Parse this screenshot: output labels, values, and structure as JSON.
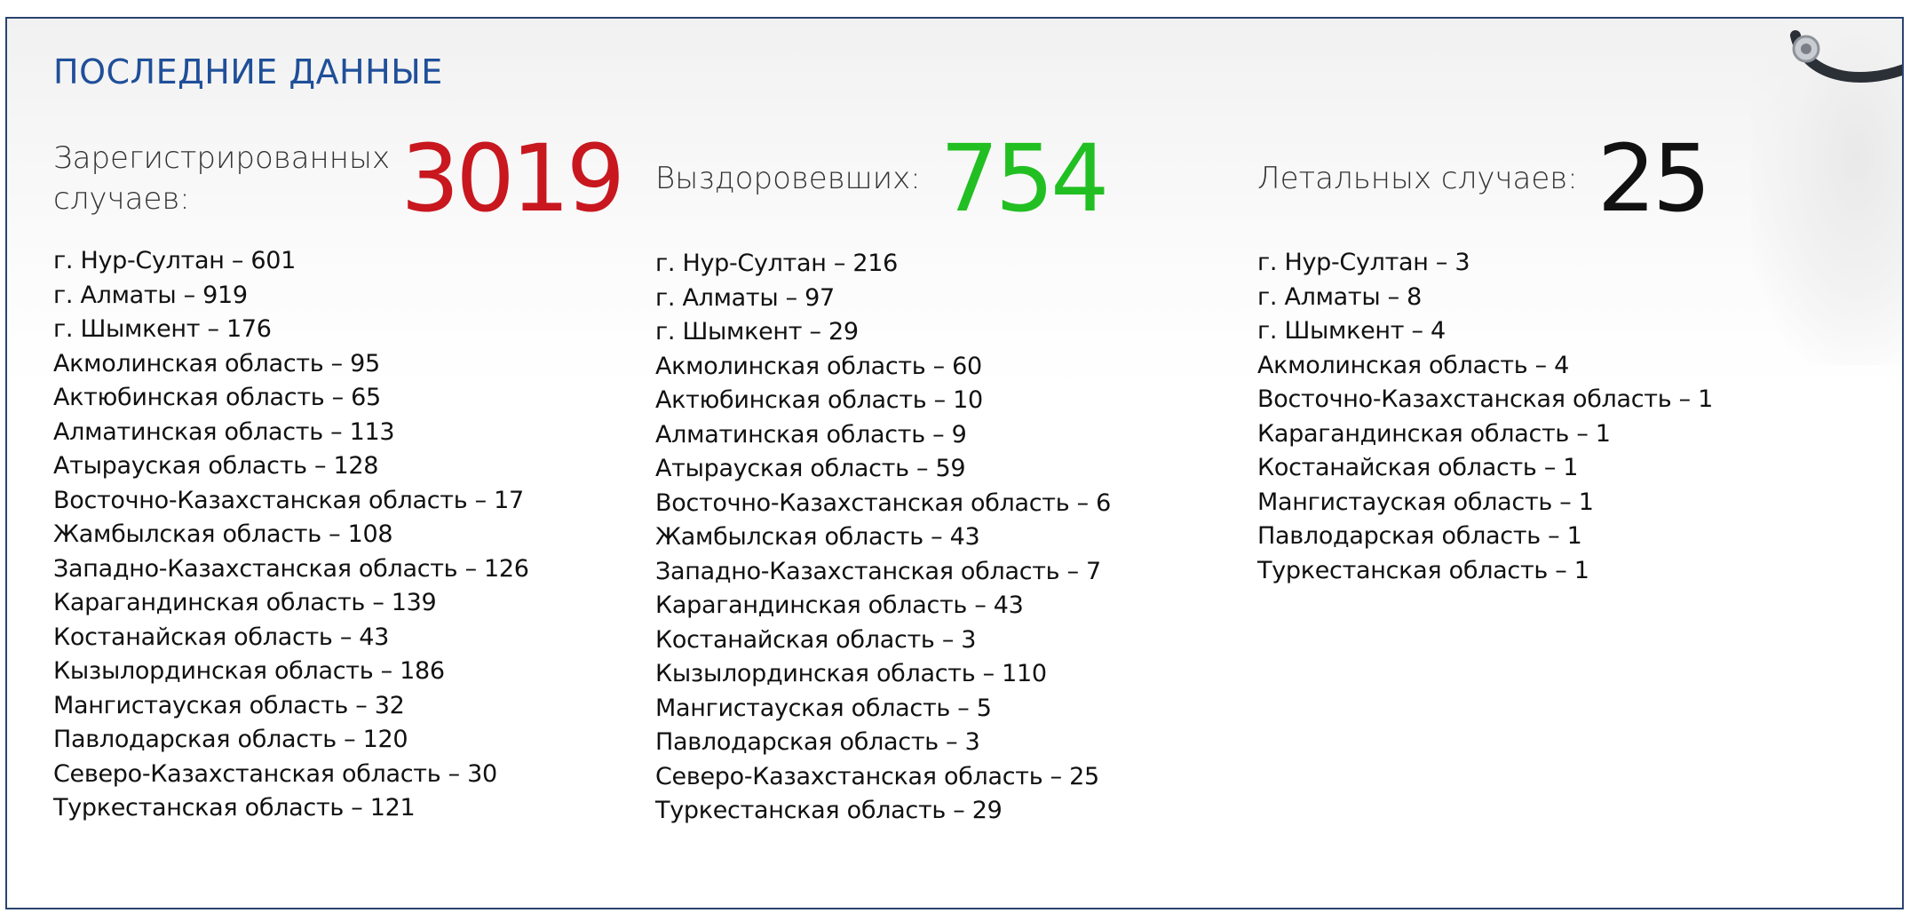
{
  "title": "ПОСЛЕДНИЕ ДАННЫЕ",
  "colors": {
    "title": "#1f4f99",
    "registered": "#c8171e",
    "recovered": "#22bf22",
    "deaths": "#111111",
    "frame_border": "#28446f"
  },
  "registered": {
    "label": "Зарегистрированных случаев:",
    "value": "3019",
    "items": [
      "г. Нур-Султан – 601",
      "г. Алматы – 919",
      "г. Шымкент – 176",
      "Акмолинская область – 95",
      "Актюбинская область – 65",
      "Алматинская область – 113",
      "Атырауская область – 128",
      "Восточно-Казахстанская область – 17",
      "Жамбылская область – 108",
      "Западно-Казахстанская область – 126",
      "Карагандинская область – 139",
      "Костанайская область – 43",
      "Кызылординская область – 186",
      "Мангистауская область – 32",
      "Павлодарская область – 120",
      "Северо-Казахстанская область – 30",
      "Туркестанская область – 121"
    ]
  },
  "recovered": {
    "label": "Выздоровевших:",
    "value": "754",
    "items": [
      "г. Нур-Султан – 216",
      "г. Алматы – 97",
      "г. Шымкент – 29",
      "Акмолинская область – 60",
      "Актюбинская область – 10",
      "Алматинская область – 9",
      "Атырауская область – 59",
      "Восточно-Казахстанская область – 6",
      "Жамбылская область – 43",
      "Западно-Казахстанская область – 7",
      "Карагандинская область – 43",
      "Костанайская область – 3",
      "Кызылординская область – 110",
      "Мангистауская область – 5",
      "Павлодарская область – 3",
      "Северо-Казахстанская область – 25",
      "Туркестанская область – 29"
    ]
  },
  "deaths": {
    "label": "Летальных случаев:",
    "value": "25",
    "items": [
      "г. Нур-Султан – 3",
      "г. Алматы – 8",
      "г. Шымкент – 4",
      "Акмолинская область – 4",
      "Восточно-Казахстанская область – 1",
      "Карагандинская область – 1",
      "Костанайская область – 1",
      "Мангистауская область – 1",
      "Павлодарская область – 1",
      "Туркестанская область – 1"
    ]
  },
  "decor": {
    "background_image_icon": "stethoscope-icon"
  }
}
